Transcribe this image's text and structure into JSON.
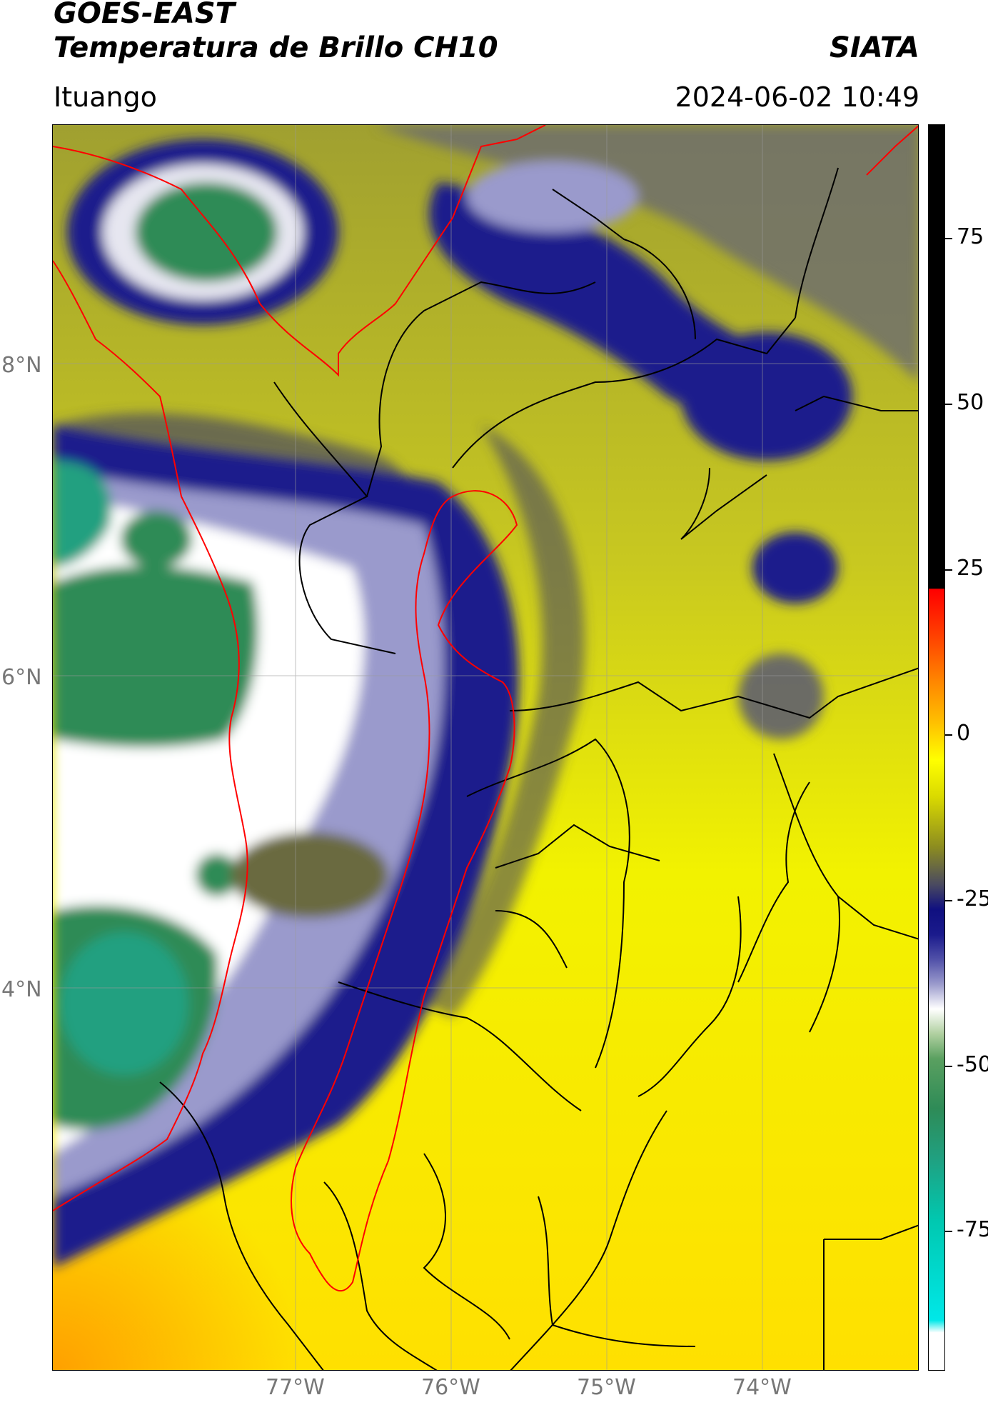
{
  "header": {
    "satellite": "GOES-EAST",
    "product": "Temperatura de Brillo CH10",
    "agency": "SIATA",
    "location": "Ituango",
    "datetime": "2024-06-02 10:49"
  },
  "map": {
    "lat_labels": [
      "8°N",
      "6°N",
      "4°N"
    ],
    "lon_labels": [
      "77°W",
      "76°W",
      "75°W",
      "74°W"
    ]
  },
  "colorbar": {
    "labels": [
      "75",
      "50",
      "25",
      "0",
      "-25",
      "-50",
      "-75"
    ]
  },
  "colors": {
    "warm": "#ffff00",
    "cold": "#1a1a8c",
    "coldest": "#2e8b57",
    "border_highlight": "#ff0000",
    "border": "#000000"
  }
}
